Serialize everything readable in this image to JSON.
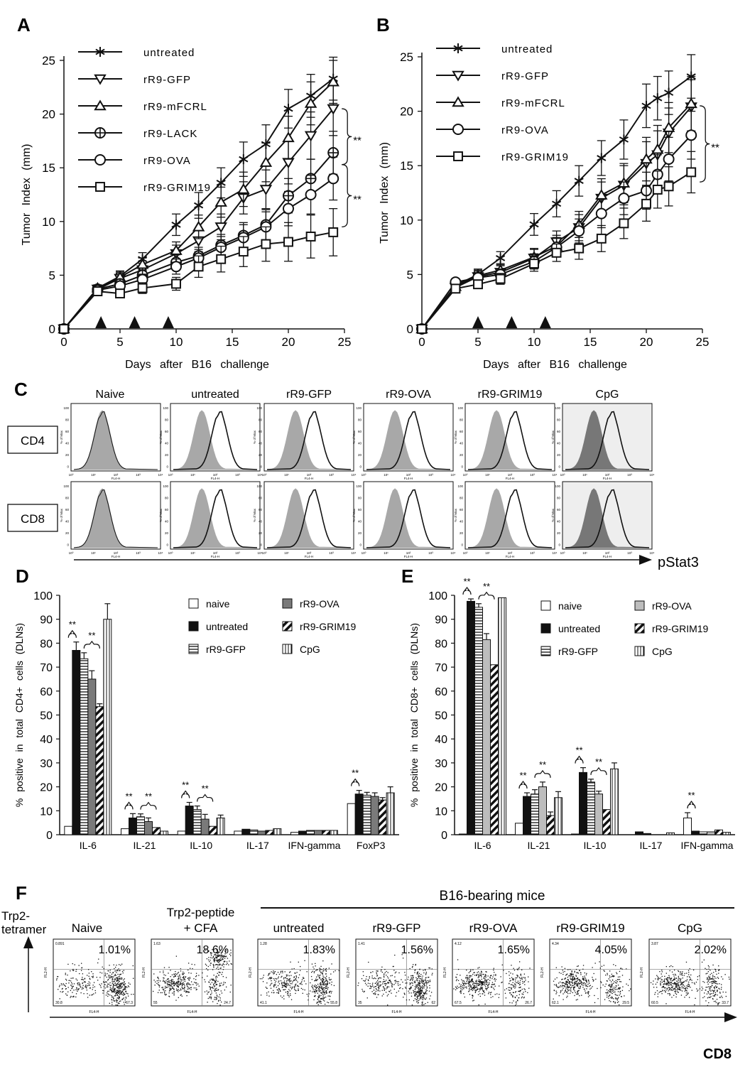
{
  "panels": {
    "A": "A",
    "B": "B",
    "C": "C",
    "D": "D",
    "E": "E",
    "F": "F"
  },
  "colors": {
    "ink": "#111111",
    "histogram_fill": "#a8a8a8",
    "histogram_fill_dark": "#777777",
    "cpg_panel_bg": "#eeeeee",
    "bar_grey": "#7a7a7a",
    "bar_light_grey": "#bdbdbd"
  },
  "chart_data": [
    {
      "id": "A",
      "type": "line",
      "xlabel": "Days after B16 challenge",
      "ylabel": "Tumor Index (mm)",
      "xlim": [
        0,
        25
      ],
      "ylim": [
        0,
        25
      ],
      "xticks": [
        0,
        5,
        10,
        15,
        20,
        25
      ],
      "yticks": [
        0,
        5,
        10,
        15,
        20,
        25
      ],
      "treatment_days": [
        3.3,
        6.3,
        9.3
      ],
      "legend": "top-left",
      "significance": [
        {
          "label": "**",
          "from": 20.5,
          "to": 15.3
        },
        {
          "label": "**",
          "from": 15.3,
          "to": 9.5
        }
      ],
      "series": [
        {
          "name": "untreated",
          "marker": "star",
          "x": [
            0,
            3,
            5,
            7,
            10,
            12,
            14,
            16,
            18,
            20,
            22,
            24
          ],
          "y": [
            0,
            3.8,
            4.9,
            6.5,
            9.7,
            11.5,
            13.6,
            15.8,
            17.2,
            20.5,
            21.7,
            23.3
          ],
          "err": [
            0,
            0.3,
            0.5,
            0.6,
            1.0,
            1.2,
            1.4,
            1.6,
            1.8,
            1.8,
            2.0,
            2.0
          ]
        },
        {
          "name": "rR9-GFP",
          "marker": "triangle-down",
          "x": [
            0,
            3,
            5,
            7,
            10,
            12,
            14,
            16,
            18,
            20,
            22,
            24
          ],
          "y": [
            0,
            3.7,
            4.7,
            5.5,
            7.0,
            8.2,
            9.5,
            12.2,
            13.0,
            15.5,
            18.0,
            20.5
          ],
          "err": [
            0,
            0.3,
            0.5,
            0.6,
            0.8,
            1.0,
            1.2,
            1.5,
            1.8,
            2.0,
            2.2,
            2.5
          ]
        },
        {
          "name": "rR9-mFCRL",
          "marker": "triangle-up",
          "x": [
            0,
            3,
            5,
            7,
            10,
            12,
            14,
            16,
            18,
            20,
            22,
            24
          ],
          "y": [
            0,
            3.8,
            4.8,
            6.0,
            7.3,
            9.5,
            11.8,
            13.0,
            15.5,
            17.8,
            21.0,
            23.0
          ],
          "err": [
            0,
            0.3,
            0.5,
            0.6,
            0.8,
            1.1,
            1.4,
            1.6,
            1.8,
            2.0,
            2.0,
            2.0
          ]
        },
        {
          "name": "rR9-LACK",
          "marker": "circle-plus",
          "x": [
            0,
            3,
            5,
            7,
            10,
            12,
            14,
            16,
            18,
            20,
            22,
            24
          ],
          "y": [
            0,
            3.7,
            4.2,
            5.0,
            6.2,
            6.8,
            7.8,
            8.7,
            9.7,
            12.4,
            14.0,
            16.4
          ],
          "err": [
            0,
            0.3,
            0.4,
            0.5,
            0.7,
            0.8,
            1.0,
            1.2,
            1.4,
            1.6,
            1.8,
            2.0
          ]
        },
        {
          "name": "rR9-OVA",
          "marker": "circle",
          "x": [
            0,
            3,
            5,
            7,
            10,
            12,
            14,
            16,
            18,
            20,
            22,
            24
          ],
          "y": [
            0,
            3.6,
            4.0,
            4.6,
            5.8,
            6.6,
            7.6,
            8.5,
            9.5,
            11.2,
            12.5,
            14.0
          ],
          "err": [
            0,
            0.3,
            0.4,
            0.5,
            0.7,
            0.8,
            1.0,
            1.2,
            1.4,
            1.6,
            1.8,
            2.0
          ]
        },
        {
          "name": "rR9-GRIM19",
          "marker": "square",
          "x": [
            0,
            3,
            5,
            7,
            10,
            12,
            14,
            16,
            18,
            20,
            22,
            24
          ],
          "y": [
            0,
            3.5,
            3.3,
            3.8,
            4.2,
            5.8,
            6.5,
            7.2,
            7.9,
            8.1,
            8.6,
            9.0
          ],
          "err": [
            0,
            0.3,
            0.4,
            0.5,
            0.6,
            1.0,
            1.2,
            1.4,
            1.6,
            1.8,
            2.0,
            2.2
          ]
        }
      ]
    },
    {
      "id": "B",
      "type": "line",
      "xlabel": "Days after B16 challenge",
      "ylabel": "Tumor Index (mm)",
      "xlim": [
        0,
        25
      ],
      "ylim": [
        0,
        25
      ],
      "xticks": [
        0,
        5,
        10,
        15,
        20,
        25
      ],
      "yticks": [
        0,
        5,
        10,
        15,
        20,
        25
      ],
      "treatment_days": [
        5,
        8,
        11
      ],
      "legend": "top-left",
      "significance": [
        {
          "label": "**",
          "from": 20.5,
          "to": 13.5
        }
      ],
      "series": [
        {
          "name": "untreated",
          "marker": "star",
          "x": [
            0,
            3,
            5,
            7,
            10,
            12,
            14,
            16,
            18,
            20,
            21,
            22,
            24
          ],
          "y": [
            0,
            4.0,
            5.0,
            6.5,
            9.6,
            11.5,
            13.6,
            15.7,
            17.4,
            20.5,
            21.2,
            21.7,
            23.2
          ],
          "err": [
            0,
            0.3,
            0.5,
            0.6,
            1.0,
            1.2,
            1.4,
            1.6,
            1.8,
            2.0,
            2.0,
            2.0,
            2.0
          ]
        },
        {
          "name": "rR9-GFP",
          "marker": "triangle-down",
          "x": [
            0,
            3,
            5,
            7,
            10,
            12,
            14,
            16,
            18,
            20,
            21,
            22,
            24
          ],
          "y": [
            0,
            3.8,
            4.8,
            5.2,
            6.5,
            8.0,
            9.3,
            12.0,
            13.2,
            15.2,
            16.0,
            18.0,
            20.4
          ],
          "err": [
            0,
            0.3,
            0.5,
            0.6,
            0.8,
            1.0,
            1.2,
            1.5,
            1.8,
            2.0,
            2.2,
            2.3,
            2.5
          ]
        },
        {
          "name": "rR9-mFCRL",
          "marker": "triangle-up",
          "x": [
            0,
            3,
            5,
            7,
            10,
            12,
            14,
            16,
            18,
            20,
            21,
            22,
            24
          ],
          "y": [
            0,
            3.9,
            4.9,
            5.4,
            6.6,
            7.6,
            9.6,
            12.3,
            13.4,
            15.6,
            16.5,
            18.5,
            20.7
          ],
          "err": [
            0,
            0.3,
            0.5,
            0.6,
            0.8,
            1.0,
            1.2,
            1.5,
            1.8,
            2.0,
            2.2,
            2.3,
            2.5
          ]
        },
        {
          "name": "rR9-OVA",
          "marker": "circle",
          "x": [
            0,
            3,
            5,
            7,
            10,
            12,
            14,
            16,
            18,
            20,
            21,
            22,
            24
          ],
          "y": [
            0,
            4.3,
            4.7,
            5.0,
            6.2,
            7.5,
            9.0,
            10.6,
            12.0,
            12.7,
            14.2,
            15.6,
            17.8
          ],
          "err": [
            0,
            0.3,
            0.4,
            0.5,
            0.7,
            0.9,
            1.1,
            1.3,
            1.5,
            1.7,
            1.8,
            2.0,
            2.2
          ]
        },
        {
          "name": "rR9-GRIM19",
          "marker": "square",
          "x": [
            0,
            3,
            5,
            7,
            10,
            12,
            14,
            16,
            18,
            20,
            21,
            22,
            24
          ],
          "y": [
            0,
            3.7,
            4.1,
            4.6,
            6.0,
            7.0,
            7.4,
            8.3,
            9.7,
            11.5,
            12.8,
            13.1,
            14.4
          ],
          "err": [
            0,
            0.3,
            0.4,
            0.5,
            0.7,
            0.8,
            1.0,
            1.2,
            1.4,
            1.6,
            1.7,
            1.8,
            1.9
          ]
        }
      ]
    },
    {
      "id": "D",
      "type": "bar",
      "ylabel": "% positive in total CD4+ cells (DLNs)",
      "ylim": [
        0,
        100
      ],
      "yticks": [
        0,
        10,
        20,
        30,
        40,
        50,
        60,
        70,
        80,
        90,
        100
      ],
      "categories": [
        "IL-6",
        "IL-21",
        "IL-10",
        "IL-17",
        "IFN-gamma",
        "FoxP3"
      ],
      "legend": "top-right",
      "series": [
        {
          "name": "naive",
          "pattern": "white",
          "values": [
            3.5,
            2.5,
            1.5,
            1.5,
            1.0,
            13.0
          ],
          "err": [
            0,
            0,
            0,
            0,
            0,
            0
          ]
        },
        {
          "name": "untreated",
          "pattern": "black",
          "values": [
            77,
            7,
            12,
            2.3,
            1.5,
            17
          ],
          "err": [
            3.5,
            1.8,
            1.5,
            0,
            0,
            1.5
          ]
        },
        {
          "name": "rR9-GFP",
          "pattern": "hstripe",
          "values": [
            73.5,
            7.5,
            10.5,
            2.0,
            1.8,
            16.5
          ],
          "err": [
            2.5,
            1.2,
            1.5,
            0,
            0,
            1.2
          ]
        },
        {
          "name": "rR9-OVA",
          "pattern": "grey",
          "values": [
            65,
            5.5,
            6.5,
            1.5,
            1.8,
            16
          ],
          "err": [
            3.5,
            1.5,
            2.0,
            0,
            0,
            1.5
          ]
        },
        {
          "name": "rR9-GRIM19",
          "pattern": "diag",
          "values": [
            53.5,
            3.0,
            3.5,
            1.8,
            1.8,
            14.5
          ],
          "err": [
            1.2,
            0,
            0,
            0,
            0,
            1.0
          ]
        },
        {
          "name": "CpG",
          "pattern": "vstripe",
          "values": [
            90,
            1.5,
            7,
            2.5,
            1.8,
            17.5
          ],
          "err": [
            6.5,
            0,
            1.2,
            0,
            0,
            2.5
          ]
        }
      ],
      "significance": [
        {
          "label": "**",
          "cat": 0,
          "from": 0,
          "to": 1
        },
        {
          "label": "**",
          "cat": 0,
          "from": 2,
          "to": 4
        },
        {
          "label": "**",
          "cat": 1,
          "from": 0,
          "to": 1
        },
        {
          "label": "**",
          "cat": 1,
          "from": 2,
          "to": 4
        },
        {
          "label": "**",
          "cat": 2,
          "from": 0,
          "to": 1
        },
        {
          "label": "**",
          "cat": 2,
          "from": 2,
          "to": 4
        },
        {
          "label": "**",
          "cat": 5,
          "from": 0,
          "to": 1
        }
      ]
    },
    {
      "id": "E",
      "type": "bar",
      "ylabel": "% positive in total CD8+ cells (DLNs)",
      "ylim": [
        0,
        100
      ],
      "yticks": [
        0,
        10,
        20,
        30,
        40,
        50,
        60,
        70,
        80,
        90,
        100
      ],
      "categories": [
        "IL-6",
        "IL-21",
        "IL-10",
        "IL-17",
        "IFN-gamma"
      ],
      "legend": "top-right",
      "series": [
        {
          "name": "naive",
          "pattern": "white",
          "values": [
            0.3,
            4.8,
            0.3,
            0,
            7
          ],
          "err": [
            0,
            0,
            0,
            0,
            2.2
          ]
        },
        {
          "name": "untreated",
          "pattern": "black",
          "values": [
            97.5,
            16,
            26,
            1.2,
            1.5
          ],
          "err": [
            1,
            1.5,
            2,
            0,
            0
          ]
        },
        {
          "name": "rR9-GFP",
          "pattern": "hstripe",
          "values": [
            95,
            17,
            22,
            0.5,
            1.2
          ],
          "err": [
            1.5,
            1.8,
            1.2,
            0,
            0
          ]
        },
        {
          "name": "rR9-OVA",
          "pattern": "lightgrey",
          "values": [
            81.5,
            20,
            17,
            0,
            1.2
          ],
          "err": [
            2.5,
            2.0,
            1.2,
            0,
            0
          ]
        },
        {
          "name": "rR9-GRIM19",
          "pattern": "diag",
          "values": [
            71,
            8,
            10.5,
            0,
            2
          ],
          "err": [
            0,
            1.5,
            0,
            0,
            0
          ]
        },
        {
          "name": "CpG",
          "pattern": "vstripe",
          "values": [
            99,
            15.5,
            27.5,
            0.8,
            1
          ],
          "err": [
            0,
            2.5,
            2.5,
            0,
            0
          ]
        }
      ],
      "significance": [
        {
          "label": "**",
          "cat": 0,
          "from": 0,
          "to": 1
        },
        {
          "label": "**",
          "cat": 0,
          "from": 2,
          "to": 4
        },
        {
          "label": "**",
          "cat": 1,
          "from": 0,
          "to": 1
        },
        {
          "label": "**",
          "cat": 1,
          "from": 2,
          "to": 4
        },
        {
          "label": "**",
          "cat": 2,
          "from": 0,
          "to": 1
        },
        {
          "label": "**",
          "cat": 2,
          "from": 2,
          "to": 4
        },
        {
          "label": "**",
          "cat": 4,
          "from": 0,
          "to": 1
        }
      ]
    }
  ],
  "panel_C": {
    "columns": [
      "Naive",
      "untreated",
      "rR9-GFP",
      "rR9-OVA",
      "rR9-GRIM19",
      "CpG"
    ],
    "rows": [
      "CD4",
      "CD8"
    ],
    "xaxis_label": "pStat3",
    "axis_small": "FL4-H",
    "yaxis_small": "% of Max",
    "ticks": [
      "100",
      "80",
      "60",
      "40",
      "20",
      "0"
    ],
    "xticks": [
      "10⁰",
      "10¹",
      "10²",
      "10³",
      "10⁴"
    ],
    "shifted": [
      false,
      true,
      true,
      true,
      true,
      true
    ]
  },
  "panel_F": {
    "group_title": "B16-bearing mice",
    "yaxis_label": "Trp2-tetramer",
    "xaxis_label": "CD8",
    "fl_y": "FL2-H",
    "fl_x": "FL4-H",
    "plots": [
      {
        "title": "Naive",
        "pct": "1.01%",
        "q": [
          "0.891",
          "",
          "30.8",
          "67.3"
        ]
      },
      {
        "title": "Trp2-peptide + CFA",
        "pct": "18.6%",
        "q": [
          "1.63",
          "",
          "55",
          "24.7"
        ]
      },
      {
        "title": "untreated",
        "pct": "1.83%",
        "q": [
          "1.28",
          "",
          "41.1",
          "55.8"
        ]
      },
      {
        "title": "rR9-GFP",
        "pct": "1.56%",
        "q": [
          "1.41",
          "",
          "35",
          "62"
        ]
      },
      {
        "title": "rR9-OVA",
        "pct": "1.65%",
        "q": [
          "4.12",
          "",
          "67.5",
          "26.7"
        ]
      },
      {
        "title": "rR9-GRIM19",
        "pct": "4.05%",
        "q": [
          "4.34",
          "",
          "62.1",
          "29.5"
        ]
      },
      {
        "title": "CpG",
        "pct": "2.02%",
        "q": [
          "3.87",
          "",
          "60.5",
          "33.7"
        ]
      }
    ]
  }
}
